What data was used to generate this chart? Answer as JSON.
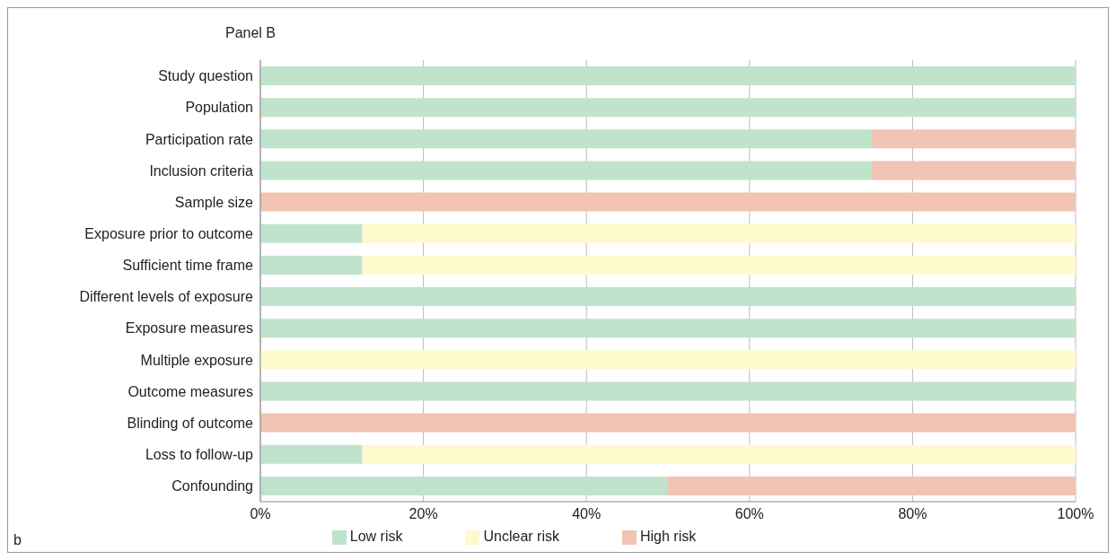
{
  "chart_data": {
    "type": "bar",
    "orientation": "horizontal",
    "stacked": true,
    "title": "Panel B",
    "annotations": [
      "b"
    ],
    "categories": [
      "Study question",
      "Population",
      "Participation rate",
      "Inclusion criteria",
      "Sample size",
      "Exposure prior to outcome",
      "Sufficient time frame",
      "Different levels of exposure",
      "Exposure measures",
      "Multiple exposure",
      "Outcome measures",
      "Blinding of outcome",
      "Loss to follow-up",
      "Confounding"
    ],
    "series": [
      {
        "name": "Low risk",
        "color": "#c0e3cc",
        "values": [
          100,
          100,
          75,
          75,
          0,
          12.5,
          12.5,
          100,
          100,
          0,
          100,
          0,
          12.5,
          50
        ]
      },
      {
        "name": "Unclear risk",
        "color": "#fefacd",
        "values": [
          0,
          0,
          0,
          0,
          0,
          87.5,
          87.5,
          0,
          0,
          100,
          0,
          0,
          87.5,
          0
        ]
      },
      {
        "name": "High risk",
        "color": "#f1c4b3",
        "values": [
          0,
          0,
          25,
          25,
          100,
          0,
          0,
          0,
          0,
          0,
          0,
          100,
          0,
          50
        ]
      }
    ],
    "xlim": [
      0,
      100
    ],
    "xticks": [
      {
        "value": 0,
        "label": "0%"
      },
      {
        "value": 20,
        "label": "20%"
      },
      {
        "value": 40,
        "label": "40%"
      },
      {
        "value": 60,
        "label": "60%"
      },
      {
        "value": 80,
        "label": "80%"
      },
      {
        "value": 100,
        "label": "100%"
      }
    ],
    "grid": "x",
    "legend": "bottom"
  }
}
